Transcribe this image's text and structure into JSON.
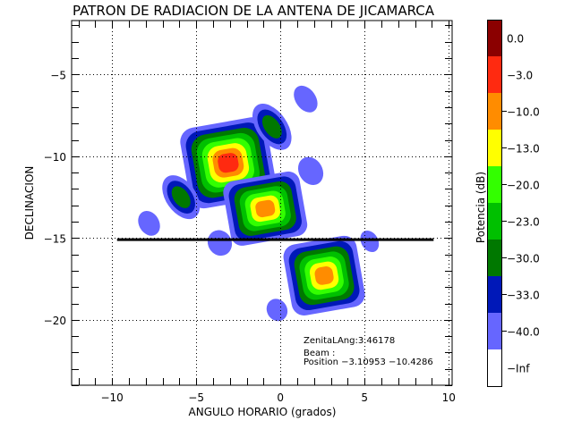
{
  "chart_data": {
    "type": "heatmap",
    "title": "PATRON DE RADIACION DE LA ANTENA DE JICAMARCA",
    "xlabel": "ANGULO HORARIO (grados)",
    "ylabel": "DECLINACION",
    "xlim": [
      -12.4,
      10.2
    ],
    "ylim": [
      -24.0,
      -1.7
    ],
    "xticks": [
      -10,
      -5,
      0,
      5,
      10
    ],
    "xtick_labels": [
      "−10",
      "−5",
      "0",
      "5",
      "10"
    ],
    "yticks": [
      -5,
      -10,
      -15,
      -20
    ],
    "ytick_labels": [
      "−5",
      "−10",
      "−15",
      "−20"
    ],
    "grid": true,
    "colorbar": {
      "label": "Potencia (dB)",
      "levels": [
        {
          "label": "0.0",
          "color": "#8b0000"
        },
        {
          "label": "−3.0",
          "color": "#ff2a10"
        },
        {
          "label": "−10.0",
          "color": "#ff8c00"
        },
        {
          "label": "−13.0",
          "color": "#ffff00"
        },
        {
          "label": "−20.0",
          "color": "#33ff00"
        },
        {
          "label": "−23.0",
          "color": "#00c000"
        },
        {
          "label": "−30.0",
          "color": "#007800"
        },
        {
          "label": "−33.0",
          "color": "#0018b8"
        },
        {
          "label": "−40.0",
          "color": "#6666ff"
        },
        {
          "label": "−Inf",
          "color": "#ffffff"
        }
      ]
    },
    "lobes": [
      {
        "name": "main-lobe",
        "x": -3.1,
        "y": -10.4,
        "rx": 2.6,
        "ry": 2.5,
        "peak_level": 1,
        "shape": "square"
      },
      {
        "name": "lobe-center",
        "x": -0.9,
        "y": -13.2,
        "rx": 2.3,
        "ry": 2.0,
        "peak_level": 2,
        "shape": "square"
      },
      {
        "name": "lobe-lower-right",
        "x": 2.6,
        "y": -17.3,
        "rx": 2.2,
        "ry": 2.2,
        "peak_level": 2,
        "shape": "square"
      },
      {
        "name": "lobe-upper-mid",
        "x": -0.5,
        "y": -8.2,
        "rx": 0.9,
        "ry": 1.6,
        "peak_level": 6,
        "shape": "ellipse",
        "rot": -35
      },
      {
        "name": "lobe-left-mid",
        "x": -5.9,
        "y": -12.5,
        "rx": 0.9,
        "ry": 1.5,
        "peak_level": 6,
        "shape": "ellipse",
        "rot": -35
      },
      {
        "name": "side-upper-right",
        "x": 1.5,
        "y": -6.5,
        "rx": 0.6,
        "ry": 0.9,
        "peak_level": 8,
        "shape": "ellipse",
        "rot": -35
      },
      {
        "name": "side-right",
        "x": 1.8,
        "y": -10.9,
        "rx": 0.7,
        "ry": 0.9,
        "peak_level": 8,
        "shape": "ellipse",
        "rot": -30
      },
      {
        "name": "side-left-low",
        "x": -7.8,
        "y": -14.1,
        "rx": 0.6,
        "ry": 0.8,
        "peak_level": 8,
        "shape": "ellipse",
        "rot": -30
      },
      {
        "name": "side-center-low",
        "x": -3.6,
        "y": -15.3,
        "rx": 0.7,
        "ry": 0.8,
        "peak_level": 8,
        "shape": "ellipse",
        "rot": -30
      },
      {
        "name": "side-right-low",
        "x": 5.3,
        "y": -15.2,
        "rx": 0.5,
        "ry": 0.7,
        "peak_level": 8,
        "shape": "ellipse",
        "rot": -30
      },
      {
        "name": "side-bottom",
        "x": -0.2,
        "y": -19.4,
        "rx": 0.6,
        "ry": 0.7,
        "peak_level": 8,
        "shape": "ellipse",
        "rot": -30
      }
    ],
    "line": {
      "y": -15.1,
      "x_start": -9.7,
      "x_end": 9.1
    },
    "annotations": {
      "zenital": "ZenitaLAng:3.46178",
      "beam": "Beam   :",
      "position": "Position −3.10953 −10.4286"
    }
  }
}
